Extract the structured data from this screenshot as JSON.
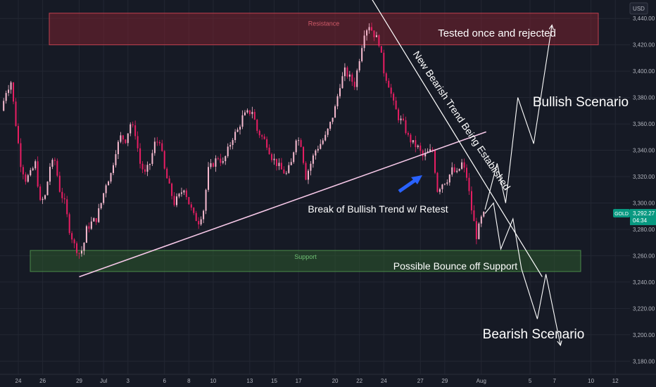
{
  "chart_data": {
    "type": "candlestick",
    "currency": "USD",
    "symbol": "GOLD",
    "last_price": "3,292.27",
    "countdown": "04:34",
    "ylim": [
      3170,
      3454
    ],
    "y_ticks": [
      3180,
      3200,
      3220,
      3240,
      3260,
      3280,
      3300,
      3320,
      3340,
      3360,
      3380,
      3400,
      3420,
      3440
    ],
    "y_tick_labels": [
      "3,180.00",
      "3,200.00",
      "3,220.00",
      "3,240.00",
      "3,260.00",
      "3,280.00",
      "3,300.00",
      "3,320.00",
      "3,340.00",
      "3,360.00",
      "3,380.00",
      "3,400.00",
      "3,420.00",
      "3,440.00"
    ],
    "x_ticks": [
      {
        "label": "24",
        "day": 24
      },
      {
        "label": "26",
        "day": 26
      },
      {
        "label": "29",
        "day": 29
      },
      {
        "label": "Jul",
        "day": 31
      },
      {
        "label": "3",
        "day": 33
      },
      {
        "label": "6",
        "day": 36
      },
      {
        "label": "8",
        "day": 38
      },
      {
        "label": "10",
        "day": 40
      },
      {
        "label": "13",
        "day": 43
      },
      {
        "label": "15",
        "day": 45
      },
      {
        "label": "17",
        "day": 47
      },
      {
        "label": "20",
        "day": 50
      },
      {
        "label": "22",
        "day": 52
      },
      {
        "label": "24",
        "day": 54
      },
      {
        "label": "27",
        "day": 57
      },
      {
        "label": "29",
        "day": 59
      },
      {
        "label": "Aug",
        "day": 62
      },
      {
        "label": "5",
        "day": 66
      },
      {
        "label": "7",
        "day": 68
      },
      {
        "label": "10",
        "day": 71
      },
      {
        "label": "12",
        "day": 73
      }
    ],
    "xlim": [
      22.5,
      74.2
    ],
    "price_path": [
      [
        22.6,
        3370
      ],
      [
        23.0,
        3385
      ],
      [
        23.4,
        3392
      ],
      [
        23.8,
        3360
      ],
      [
        24.2,
        3330
      ],
      [
        24.6,
        3318
      ],
      [
        25.0,
        3322
      ],
      [
        25.4,
        3330
      ],
      [
        25.8,
        3300
      ],
      [
        26.2,
        3305
      ],
      [
        26.6,
        3328
      ],
      [
        27.0,
        3332
      ],
      [
        27.4,
        3310
      ],
      [
        27.8,
        3300
      ],
      [
        28.2,
        3280
      ],
      [
        28.6,
        3268
      ],
      [
        29.0,
        3262
      ],
      [
        29.3,
        3265
      ],
      [
        29.6,
        3280
      ],
      [
        30.0,
        3285
      ],
      [
        30.4,
        3288
      ],
      [
        30.8,
        3300
      ],
      [
        31.2,
        3315
      ],
      [
        31.6,
        3322
      ],
      [
        32.0,
        3340
      ],
      [
        32.4,
        3350
      ],
      [
        32.8,
        3348
      ],
      [
        33.2,
        3360
      ],
      [
        33.6,
        3353
      ],
      [
        34.0,
        3330
      ],
      [
        34.4,
        3322
      ],
      [
        34.8,
        3330
      ],
      [
        35.2,
        3345
      ],
      [
        35.6,
        3348
      ],
      [
        36.0,
        3325
      ],
      [
        36.4,
        3312
      ],
      [
        36.8,
        3300
      ],
      [
        37.2,
        3305
      ],
      [
        37.6,
        3312
      ],
      [
        38.0,
        3300
      ],
      [
        38.4,
        3290
      ],
      [
        38.8,
        3286
      ],
      [
        39.2,
        3295
      ],
      [
        39.6,
        3325
      ],
      [
        40.0,
        3330
      ],
      [
        40.4,
        3335
      ],
      [
        40.8,
        3330
      ],
      [
        41.2,
        3340
      ],
      [
        41.6,
        3350
      ],
      [
        42.0,
        3355
      ],
      [
        42.4,
        3365
      ],
      [
        42.8,
        3368
      ],
      [
        43.2,
        3370
      ],
      [
        43.6,
        3355
      ],
      [
        44.0,
        3350
      ],
      [
        44.4,
        3345
      ],
      [
        44.8,
        3335
      ],
      [
        45.2,
        3330
      ],
      [
        45.6,
        3325
      ],
      [
        46.0,
        3322
      ],
      [
        46.4,
        3330
      ],
      [
        46.8,
        3350
      ],
      [
        47.2,
        3345
      ],
      [
        47.6,
        3320
      ],
      [
        48.0,
        3330
      ],
      [
        48.4,
        3340
      ],
      [
        48.8,
        3345
      ],
      [
        49.2,
        3350
      ],
      [
        49.6,
        3360
      ],
      [
        50.0,
        3372
      ],
      [
        50.4,
        3390
      ],
      [
        50.8,
        3400
      ],
      [
        51.2,
        3395
      ],
      [
        51.6,
        3390
      ],
      [
        52.0,
        3410
      ],
      [
        52.4,
        3430
      ],
      [
        52.8,
        3435
      ],
      [
        53.2,
        3428
      ],
      [
        53.6,
        3422
      ],
      [
        54.0,
        3400
      ],
      [
        54.4,
        3390
      ],
      [
        54.8,
        3375
      ],
      [
        55.2,
        3365
      ],
      [
        55.6,
        3360
      ],
      [
        56.0,
        3350
      ],
      [
        56.4,
        3345
      ],
      [
        56.8,
        3342
      ],
      [
        57.2,
        3335
      ],
      [
        57.6,
        3338
      ],
      [
        58.0,
        3340
      ],
      [
        58.4,
        3310
      ],
      [
        58.8,
        3315
      ],
      [
        59.2,
        3318
      ],
      [
        59.6,
        3325
      ],
      [
        60.0,
        3322
      ],
      [
        60.4,
        3330
      ],
      [
        60.8,
        3320
      ],
      [
        61.2,
        3295
      ],
      [
        61.6,
        3275
      ],
      [
        62.0,
        3288
      ],
      [
        62.3,
        3292.27
      ]
    ],
    "annotations": {
      "resistance_label": "Resistance",
      "support_label": "Support",
      "tested_text": "Tested once and rejected",
      "bearish_trend_text": "New Bearish Trend Being Established",
      "bullish_scenario": "Bullish Scenario",
      "break_text": "Break of Bullish Trend w/ Retest",
      "bounce_text": "Possible Bounce off Support",
      "bearish_scenario": "Bearish Scenario"
    },
    "resistance_zone": [
      3420,
      3444
    ],
    "support_zone": [
      3248,
      3264
    ],
    "bullish_trendline": [
      [
        29.0,
        3244
      ],
      [
        62.4,
        3354
      ]
    ],
    "bearish_trendline": [
      [
        52.0,
        3470
      ],
      [
        67.0,
        3244
      ]
    ],
    "bullish_path": [
      [
        62.3,
        3295
      ],
      [
        63.3,
        3330
      ],
      [
        64.0,
        3300
      ],
      [
        65.0,
        3380
      ],
      [
        66.3,
        3345
      ],
      [
        67.8,
        3435
      ]
    ],
    "bearish_path": [
      [
        62.3,
        3292
      ],
      [
        63.0,
        3300
      ],
      [
        63.6,
        3265
      ],
      [
        64.6,
        3288
      ],
      [
        65.3,
        3250
      ],
      [
        66.6,
        3212
      ],
      [
        67.3,
        3246
      ],
      [
        68.5,
        3192
      ]
    ],
    "colors": {
      "background": "#161a25",
      "bullish_candle": "#f8bbd0",
      "bearish_candle": "#e91e63",
      "resistance_fill": "#7a2330",
      "support_fill": "#2e5a2e",
      "trendline": "#f6c8e8",
      "annotation": "#ffffff",
      "arrow_blue": "#2962ff",
      "price_tag": "#089981"
    }
  }
}
